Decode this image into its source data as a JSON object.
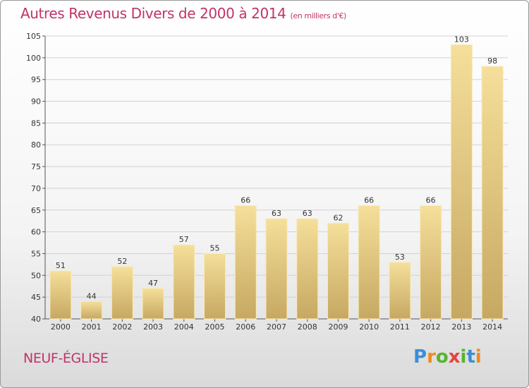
{
  "header": {
    "title": "Autres Revenus Divers de 2000 à 2014",
    "subtitle": "(en milliers d'€)"
  },
  "footer": {
    "place": "NEUF-ÉGLISE",
    "logo_text": "Proxiti"
  },
  "colors": {
    "title": "#c0336a",
    "bar_light": "#f5df9a",
    "bar_dark": "#c8aa62",
    "grid": "#d0d0d0"
  },
  "chart_data": {
    "type": "bar",
    "title": "Autres Revenus Divers de 2000 à 2014",
    "subtitle": "(en milliers d'€)",
    "categories": [
      "2000",
      "2001",
      "2002",
      "2003",
      "2004",
      "2005",
      "2006",
      "2007",
      "2008",
      "2009",
      "2010",
      "2011",
      "2012",
      "2013",
      "2014"
    ],
    "values": [
      51,
      44,
      52,
      47,
      57,
      55,
      66,
      63,
      63,
      62,
      66,
      53,
      66,
      103,
      98
    ],
    "ylim": [
      40,
      105
    ],
    "yticks": [
      40,
      45,
      50,
      55,
      60,
      65,
      70,
      75,
      80,
      85,
      90,
      95,
      100,
      105
    ],
    "grid": true,
    "xlabel": "",
    "ylabel": ""
  }
}
